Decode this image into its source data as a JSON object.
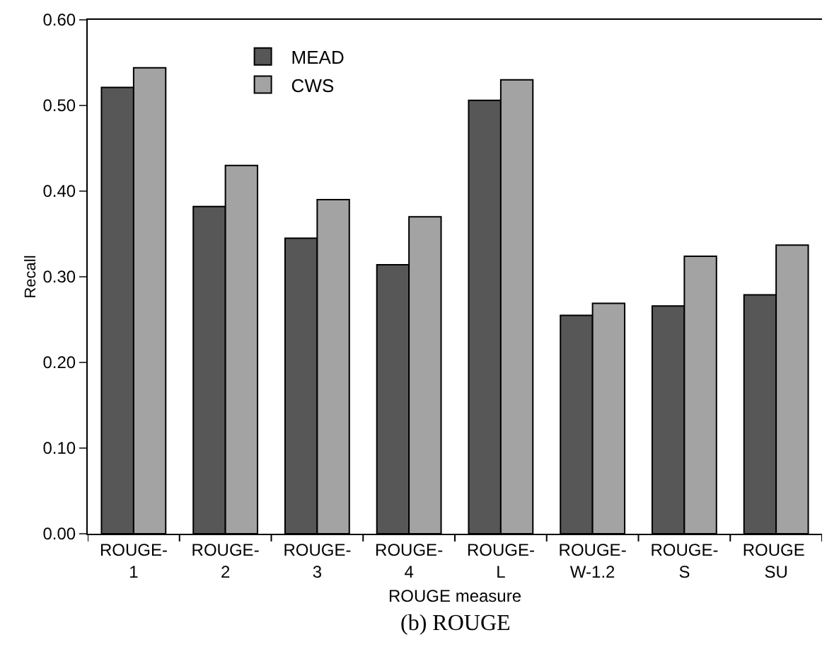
{
  "chart_data": {
    "type": "bar",
    "categories": [
      "ROUGE-1",
      "ROUGE-2",
      "ROUGE-3",
      "ROUGE-4",
      "ROUGE-L",
      "ROUGE-W-1.2",
      "ROUGE-S",
      "ROUGE SU"
    ],
    "series": [
      {
        "name": "MEAD",
        "color": "#575757",
        "values": [
          0.521,
          0.382,
          0.345,
          0.314,
          0.506,
          0.255,
          0.266,
          0.279
        ]
      },
      {
        "name": "CWS",
        "color": "#a3a3a3",
        "values": [
          0.544,
          0.43,
          0.39,
          0.37,
          0.53,
          0.269,
          0.324,
          0.337
        ]
      }
    ],
    "xlabel": "ROUGE measure",
    "ylabel": "Recall",
    "ylim": [
      0,
      0.6
    ],
    "yticks": [
      {
        "value": 0,
        "label": "0.00"
      },
      {
        "value": 0.1,
        "label": "0.10"
      },
      {
        "value": 0.2,
        "label": "0.20"
      },
      {
        "value": 0.3,
        "label": "0.30"
      },
      {
        "value": 0.4,
        "label": "0.40"
      },
      {
        "value": 0.5,
        "label": "0.50"
      },
      {
        "value": 0.6,
        "label": "0.60"
      }
    ],
    "grid": false,
    "legend": "top left",
    "annotations": [
      "(b) ROUGE"
    ]
  }
}
